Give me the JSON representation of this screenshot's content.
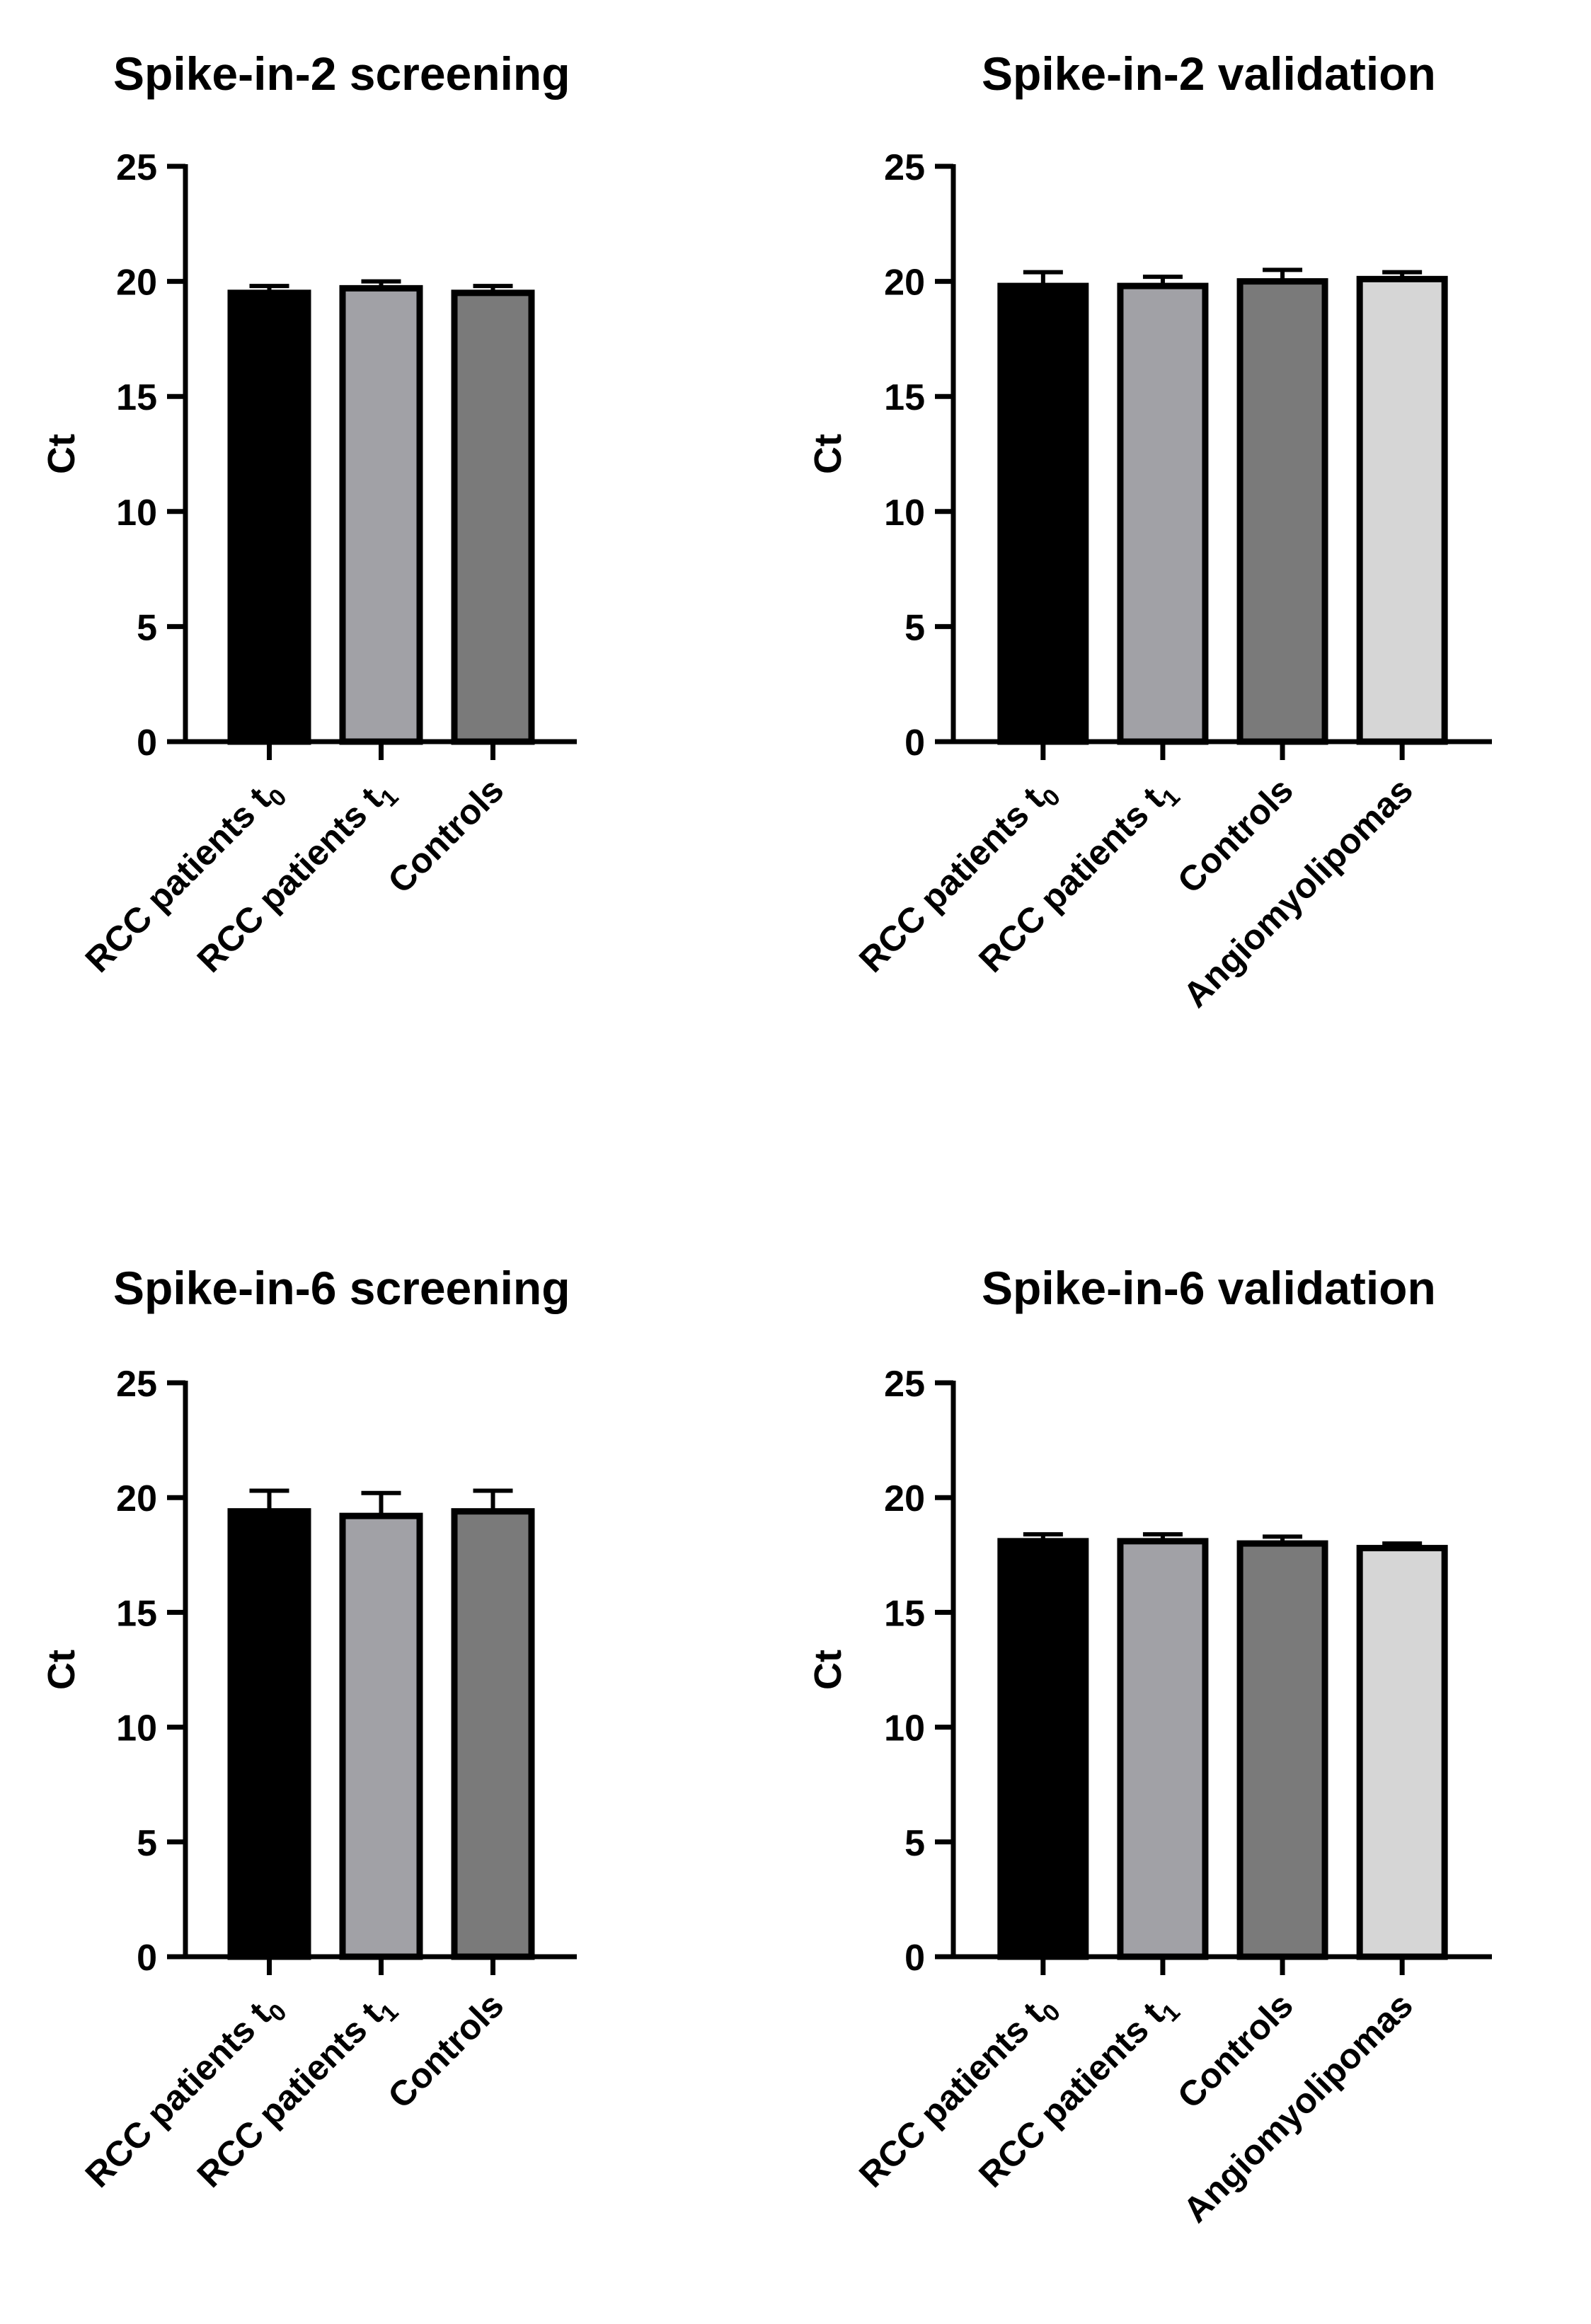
{
  "chart_data": [
    {
      "type": "bar",
      "title": "Spike-in-2 screening",
      "ylabel": "Ct",
      "ylim": [
        0,
        25
      ],
      "yticks": [
        "0",
        "5",
        "10",
        "15",
        "20",
        "25"
      ],
      "categories": [
        {
          "label": "RCC patients t",
          "sub": "0"
        },
        {
          "label": "RCC patients t",
          "sub": "1"
        },
        {
          "label": "Controls",
          "sub": ""
        }
      ],
      "values": [
        19.5,
        19.7,
        19.5
      ],
      "errors": [
        0.3,
        0.3,
        0.3
      ],
      "colors": [
        "#000000",
        "#a1a1a6",
        "#7a7a7a"
      ]
    },
    {
      "type": "bar",
      "title": "Spike-in-2 validation",
      "ylabel": "Ct",
      "ylim": [
        0,
        25
      ],
      "yticks": [
        "0",
        "5",
        "10",
        "15",
        "20",
        "25"
      ],
      "categories": [
        {
          "label": "RCC patients t",
          "sub": "0"
        },
        {
          "label": "RCC patients t",
          "sub": "1"
        },
        {
          "label": "Controls",
          "sub": ""
        },
        {
          "label": "Angiomyolipomas",
          "sub": ""
        }
      ],
      "values": [
        19.8,
        19.8,
        20.0,
        20.1
      ],
      "errors": [
        0.6,
        0.4,
        0.5,
        0.3
      ],
      "colors": [
        "#000000",
        "#a1a1a6",
        "#7a7a7a",
        "#d6d6d6"
      ]
    },
    {
      "type": "bar",
      "title": "Spike-in-6 screening",
      "ylabel": "Ct",
      "ylim": [
        0,
        25
      ],
      "yticks": [
        "0",
        "5",
        "10",
        "15",
        "20",
        "25"
      ],
      "categories": [
        {
          "label": "RCC patients t",
          "sub": "0"
        },
        {
          "label": "RCC patients t",
          "sub": "1"
        },
        {
          "label": "Controls",
          "sub": ""
        }
      ],
      "values": [
        19.4,
        19.2,
        19.4
      ],
      "errors": [
        0.9,
        1.0,
        0.9
      ],
      "colors": [
        "#000000",
        "#a1a1a6",
        "#7a7a7a"
      ]
    },
    {
      "type": "bar",
      "title": "Spike-in-6 validation",
      "ylabel": "Ct",
      "ylim": [
        0,
        25
      ],
      "yticks": [
        "0",
        "5",
        "10",
        "15",
        "20",
        "25"
      ],
      "categories": [
        {
          "label": "RCC patients t",
          "sub": "0"
        },
        {
          "label": "RCC patients t",
          "sub": "1"
        },
        {
          "label": "Controls",
          "sub": ""
        },
        {
          "label": "Angiomyolipomas",
          "sub": ""
        }
      ],
      "values": [
        18.1,
        18.1,
        18.0,
        17.8
      ],
      "errors": [
        0.3,
        0.3,
        0.3,
        0.2
      ],
      "colors": [
        "#000000",
        "#a1a1a6",
        "#7a7a7a",
        "#d6d6d6"
      ]
    }
  ]
}
